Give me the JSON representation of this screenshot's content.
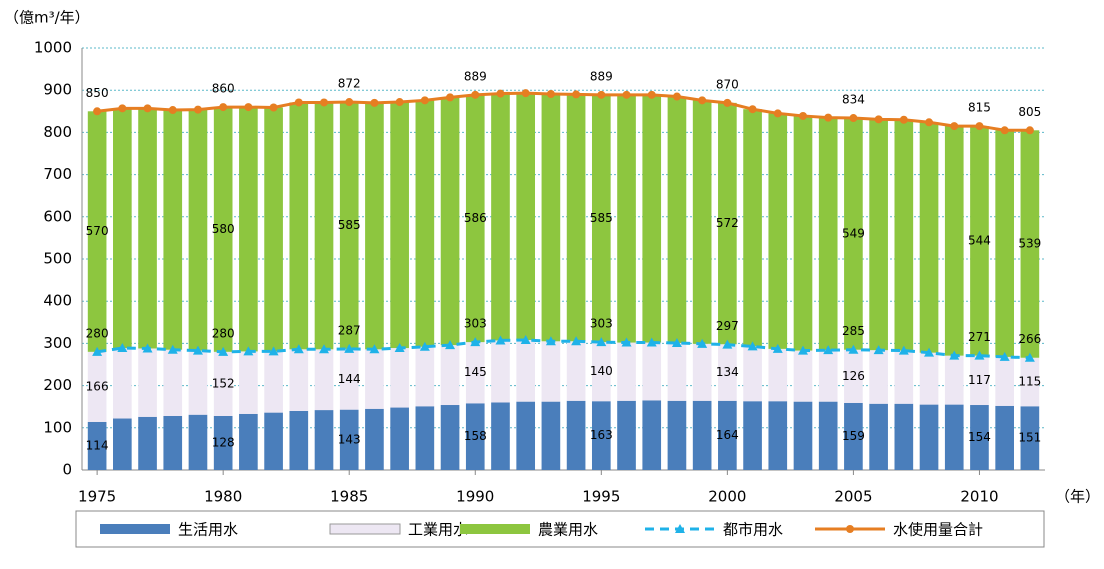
{
  "chart_data": {
    "type": "bar",
    "y_label": "（億m³/年）",
    "x_label": "（年）",
    "x": [
      1975,
      1976,
      1977,
      1978,
      1979,
      1980,
      1981,
      1982,
      1983,
      1984,
      1985,
      1986,
      1987,
      1988,
      1989,
      1990,
      1991,
      1992,
      1993,
      1994,
      1995,
      1996,
      1997,
      1998,
      1999,
      2000,
      2001,
      2002,
      2003,
      2004,
      2005,
      2006,
      2007,
      2008,
      2009,
      2010,
      2011,
      2012
    ],
    "xlim": [
      1974.4,
      2012.6
    ],
    "xticks": [
      1975,
      1980,
      1985,
      1990,
      1995,
      2000,
      2005,
      2010
    ],
    "ylim": [
      0,
      1000
    ],
    "yticks": [
      0,
      100,
      200,
      300,
      400,
      500,
      600,
      700,
      800,
      900,
      1000
    ],
    "grid": true,
    "legend": "bottom",
    "series": [
      {
        "name": "生活用水",
        "type": "bar",
        "color": "#4a7ebb",
        "values": [
          114,
          122,
          126,
          128,
          131,
          128,
          133,
          136,
          140,
          142,
          143,
          145,
          148,
          151,
          154,
          158,
          160,
          162,
          162,
          164,
          163,
          164,
          165,
          164,
          164,
          164,
          163,
          163,
          162,
          162,
          159,
          157,
          157,
          155,
          155,
          154,
          152,
          151
        ],
        "value_labels": [
          "114",
          null,
          null,
          null,
          null,
          "128",
          null,
          null,
          null,
          null,
          "143",
          null,
          null,
          null,
          null,
          "158",
          null,
          null,
          null,
          null,
          "163",
          null,
          null,
          null,
          null,
          "164",
          null,
          null,
          null,
          null,
          "159",
          null,
          null,
          null,
          null,
          "154",
          null,
          "151"
        ]
      },
      {
        "name": "工業用水",
        "type": "bar",
        "color": "#ede7f3",
        "values": [
          166,
          167,
          162,
          157,
          152,
          152,
          148,
          145,
          146,
          144,
          144,
          141,
          141,
          141,
          142,
          145,
          147,
          146,
          143,
          141,
          140,
          138,
          137,
          137,
          135,
          134,
          130,
          124,
          121,
          122,
          126,
          127,
          126,
          123,
          116,
          117,
          116,
          115
        ],
        "value_labels": [
          "166",
          null,
          null,
          null,
          null,
          "152",
          null,
          null,
          null,
          null,
          "144",
          null,
          null,
          null,
          null,
          "145",
          null,
          null,
          null,
          null,
          "140",
          null,
          null,
          null,
          null,
          "134",
          null,
          null,
          null,
          null,
          "126",
          null,
          null,
          null,
          null,
          "117",
          null,
          "115"
        ]
      },
      {
        "name": "農業用水",
        "type": "bar",
        "color": "#8dc63f",
        "values": [
          570,
          568,
          569,
          568,
          571,
          580,
          579,
          578,
          585,
          585,
          585,
          584,
          583,
          584,
          587,
          586,
          585,
          585,
          586,
          585,
          585,
          587,
          587,
          584,
          577,
          572,
          562,
          558,
          556,
          551,
          549,
          547,
          547,
          546,
          544,
          544,
          537,
          539
        ],
        "value_labels": [
          "570",
          null,
          null,
          null,
          null,
          "580",
          null,
          null,
          null,
          null,
          "585",
          null,
          null,
          null,
          null,
          "586",
          null,
          null,
          null,
          null,
          "585",
          null,
          null,
          null,
          null,
          "572",
          null,
          null,
          null,
          null,
          "549",
          null,
          null,
          null,
          null,
          "544",
          null,
          "539"
        ]
      },
      {
        "name": "都市用水",
        "type": "line",
        "color": "#1fb2e8",
        "dashed": true,
        "marker": "triangle",
        "values": [
          280,
          289,
          288,
          285,
          283,
          280,
          281,
          281,
          286,
          286,
          287,
          286,
          289,
          292,
          296,
          303,
          307,
          308,
          305,
          305,
          303,
          302,
          302,
          301,
          299,
          297,
          293,
          287,
          283,
          284,
          285,
          284,
          283,
          278,
          271,
          271,
          268,
          266
        ],
        "value_labels": [
          "280",
          null,
          null,
          null,
          null,
          "280",
          null,
          null,
          null,
          null,
          "287",
          null,
          null,
          null,
          null,
          "303",
          null,
          null,
          null,
          null,
          "303",
          null,
          null,
          null,
          null,
          "297",
          null,
          null,
          null,
          null,
          "285",
          null,
          null,
          null,
          null,
          "271",
          null,
          "266"
        ]
      },
      {
        "name": "水使用量合計",
        "type": "line",
        "color": "#e67e22",
        "dashed": false,
        "marker": "circle",
        "values": [
          850,
          857,
          857,
          853,
          854,
          860,
          860,
          859,
          871,
          871,
          872,
          870,
          872,
          876,
          883,
          889,
          892,
          893,
          891,
          890,
          889,
          889,
          889,
          885,
          876,
          870,
          855,
          845,
          839,
          835,
          834,
          831,
          830,
          824,
          815,
          815,
          805,
          805
        ],
        "value_labels": [
          "850",
          null,
          null,
          null,
          null,
          "860",
          null,
          null,
          null,
          null,
          "872",
          null,
          null,
          null,
          null,
          "889",
          null,
          null,
          null,
          null,
          "889",
          null,
          null,
          null,
          null,
          "870",
          null,
          null,
          null,
          null,
          "834",
          null,
          null,
          null,
          null,
          "815",
          null,
          "805"
        ]
      }
    ]
  }
}
